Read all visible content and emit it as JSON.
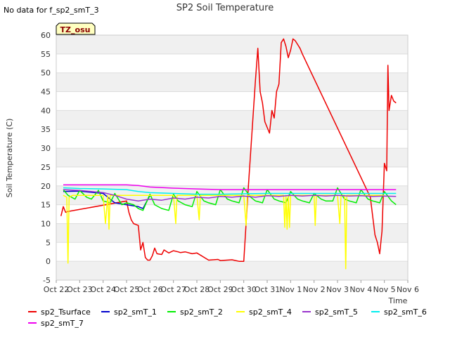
{
  "chart_data": {
    "type": "line",
    "title": "SP2 Soil Temperature",
    "note": "No data for f_sp2_smT_3",
    "badge": "TZ_osu",
    "xlabel": "Time",
    "ylabel": "Soil Temperature (C)",
    "ylim": [
      -5,
      60
    ],
    "yticks": [
      "-5",
      "0",
      "5",
      "10",
      "15",
      "20",
      "25",
      "30",
      "35",
      "40",
      "45",
      "50",
      "55",
      "60"
    ],
    "xlim": [
      0,
      15
    ],
    "xticks": [
      "Oct 22",
      "Oct 23",
      "Oct 24",
      "Oct 25",
      "Oct 26",
      "Oct 27",
      "Oct 28",
      "Oct 29",
      "Oct 30",
      "Oct 31",
      "Nov 1",
      "Nov 2",
      "Nov 3",
      "Nov 4",
      "Nov 5",
      "Nov 6"
    ],
    "grid": "horizontal bands",
    "legend_position": "bottom",
    "series": [
      {
        "name": "sp2_Tsurface",
        "color": "#ee0000",
        "x": [
          0.2,
          0.3,
          0.4,
          0.5,
          3.0,
          3.1,
          3.2,
          3.3,
          3.5,
          3.6,
          3.7,
          3.8,
          3.9,
          4.0,
          4.1,
          4.2,
          4.3,
          4.5,
          4.6,
          4.8,
          5.0,
          5.2,
          5.3,
          5.5,
          5.8,
          6.0,
          6.5,
          6.9,
          7.0,
          7.5,
          7.8,
          8.0,
          8.2,
          8.5,
          8.6,
          8.7,
          8.8,
          8.9,
          9.0,
          9.1,
          9.2,
          9.3,
          9.4,
          9.5,
          9.6,
          9.7,
          9.8,
          9.9,
          10.0,
          10.1,
          10.2,
          10.3,
          10.4,
          10.5,
          13.4,
          13.6,
          13.7,
          13.8,
          13.9,
          14.0,
          14.1,
          14.15,
          14.2,
          14.3,
          14.4,
          14.5
        ],
        "y": [
          12.0,
          14.5,
          13.0,
          13.2,
          16.0,
          13.0,
          11.0,
          10.0,
          9.5,
          3.0,
          5.0,
          1.0,
          0.3,
          0.3,
          1.5,
          3.5,
          2.0,
          1.8,
          3.0,
          2.2,
          2.8,
          2.5,
          2.3,
          2.5,
          2.0,
          2.2,
          0.3,
          0.5,
          0.2,
          0.4,
          0.0,
          0.0,
          20.0,
          48.0,
          56.5,
          45.0,
          42.0,
          37.0,
          35.5,
          34.0,
          40.0,
          38.0,
          45.0,
          47.0,
          58.0,
          59.0,
          57.0,
          54.0,
          56.0,
          59.0,
          58.5,
          57.5,
          56.5,
          55.0,
          17.0,
          7.0,
          5.0,
          2.0,
          8.0,
          26.0,
          24.0,
          52.0,
          40.0,
          44.0,
          42.5,
          42.0
        ]
      },
      {
        "name": "sp2_smT_1",
        "color": "#0000cc",
        "x": [
          0.3,
          1.0,
          2.0,
          2.5,
          3.0,
          3.5,
          3.7,
          4.0
        ],
        "y": [
          18.5,
          18.6,
          18.0,
          15.5,
          15.0,
          14.5,
          14.0,
          17.5
        ]
      },
      {
        "name": "sp2_smT_2",
        "color": "#00ee00",
        "x": [
          0.3,
          0.5,
          0.8,
          1.0,
          1.3,
          1.5,
          1.8,
          2.0,
          2.3,
          2.5,
          2.8,
          3.0,
          3.3,
          3.5,
          3.7,
          4.0,
          4.2,
          4.5,
          4.8,
          5.0,
          5.2,
          5.5,
          5.8,
          6.0,
          6.3,
          6.5,
          6.8,
          7.0,
          7.3,
          7.5,
          7.8,
          8.0,
          8.3,
          8.5,
          8.8,
          9.0,
          9.3,
          9.5,
          9.8,
          10.0,
          10.3,
          10.5,
          10.8,
          11.0,
          11.3,
          11.5,
          11.8,
          12.0,
          12.3,
          12.5,
          12.8,
          13.0,
          13.3,
          13.5,
          13.8,
          14.0,
          14.3,
          14.5
        ],
        "y": [
          19.0,
          17.5,
          16.5,
          18.8,
          17.0,
          16.5,
          18.8,
          16.0,
          15.5,
          18.0,
          15.0,
          15.5,
          15.0,
          14.0,
          13.5,
          17.8,
          15.0,
          14.0,
          13.5,
          17.8,
          16.0,
          15.0,
          14.5,
          18.5,
          16.0,
          15.5,
          15.0,
          19.0,
          16.5,
          16.0,
          15.5,
          19.5,
          17.0,
          16.0,
          15.5,
          19.0,
          16.5,
          16.0,
          15.5,
          18.5,
          16.5,
          16.0,
          15.5,
          18.0,
          16.5,
          16.0,
          16.0,
          19.5,
          16.5,
          16.0,
          15.5,
          19.0,
          16.5,
          16.0,
          15.5,
          18.5,
          16.0,
          15.0
        ]
      },
      {
        "name": "sp2_smT_4",
        "color": "#ffff00",
        "x": [
          0.3,
          0.45,
          0.5,
          0.55,
          0.7,
          2.0,
          2.1,
          2.2,
          2.25,
          2.3,
          2.4,
          4.0,
          5.0,
          5.1,
          5.15,
          5.2,
          6.0,
          6.1,
          6.15,
          6.2,
          8.0,
          8.1,
          8.15,
          8.2,
          9.0,
          9.7,
          9.75,
          9.8,
          9.85,
          9.9,
          9.95,
          10.0,
          11.0,
          11.05,
          11.1,
          11.15,
          12.0,
          12.1,
          12.15,
          12.2,
          12.3,
          12.35,
          12.4,
          12.6,
          13.0,
          14.0
        ],
        "y": [
          17.5,
          17.0,
          -0.5,
          17.0,
          17.5,
          17.5,
          10.0,
          17.5,
          8.5,
          17.5,
          17.5,
          17.5,
          17.5,
          10.0,
          17.5,
          17.5,
          17.5,
          11.0,
          17.5,
          17.5,
          17.5,
          9.5,
          17.5,
          17.5,
          17.5,
          17.5,
          9.0,
          17.5,
          8.5,
          17.5,
          9.0,
          17.5,
          17.5,
          9.5,
          17.5,
          17.5,
          17.5,
          10.0,
          17.5,
          17.5,
          17.5,
          -2.0,
          17.5,
          17.5,
          17.5,
          17.5
        ]
      },
      {
        "name": "sp2_smT_5",
        "color": "#9933cc",
        "x": [
          0.3,
          1.0,
          1.5,
          2.0,
          2.5,
          3.0,
          3.5,
          4.0,
          4.5,
          5.0,
          5.5,
          6.0,
          6.5,
          7.0,
          7.5,
          8.0,
          8.5,
          9.0,
          9.5,
          10.0,
          10.5,
          11.0,
          11.5,
          12.0,
          12.5,
          13.0,
          13.5,
          14.0,
          14.5
        ],
        "y": [
          19.0,
          18.8,
          18.5,
          18.2,
          17.5,
          16.5,
          16.0,
          16.5,
          16.2,
          16.8,
          16.5,
          17.0,
          16.8,
          17.2,
          17.0,
          17.3,
          17.0,
          17.4,
          17.2,
          17.5,
          17.3,
          17.5,
          17.3,
          17.5,
          17.3,
          17.4,
          17.2,
          17.3,
          17.2
        ]
      },
      {
        "name": "sp2_smT_6",
        "color": "#00eeee",
        "x": [
          0.3,
          1.0,
          2.0,
          3.0,
          3.5,
          4.0,
          5.0,
          6.0,
          7.0,
          8.0,
          9.0,
          10.0,
          11.0,
          12.0,
          13.0,
          14.0,
          14.5
        ],
        "y": [
          19.5,
          19.3,
          19.2,
          19.0,
          18.5,
          18.2,
          18.0,
          17.8,
          17.8,
          17.9,
          18.0,
          18.0,
          18.0,
          18.0,
          18.0,
          18.0,
          18.0
        ]
      },
      {
        "name": "sp2_smT_7",
        "color": "#ee00ee",
        "x": [
          0.3,
          1.0,
          2.0,
          3.0,
          3.5,
          4.0,
          5.0,
          6.0,
          7.0,
          8.0,
          9.0,
          10.0,
          11.0,
          12.0,
          13.0,
          14.0,
          14.5
        ],
        "y": [
          20.3,
          20.3,
          20.3,
          20.3,
          20.1,
          19.7,
          19.4,
          19.2,
          19.0,
          19.0,
          19.0,
          19.0,
          19.0,
          19.0,
          19.0,
          19.0,
          19.0
        ]
      }
    ]
  }
}
